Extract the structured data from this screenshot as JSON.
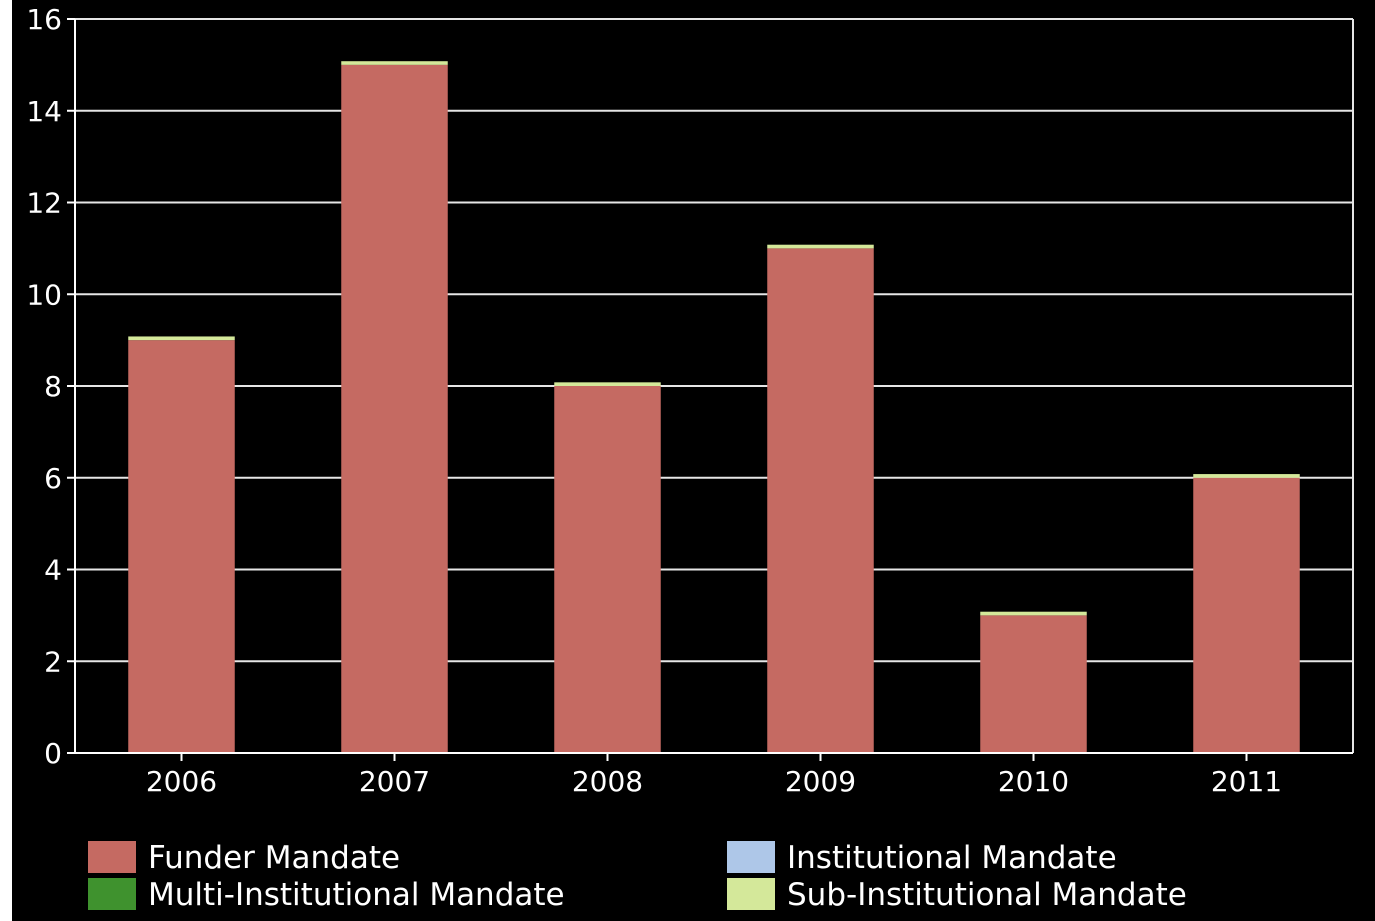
{
  "chart_data": {
    "type": "bar",
    "stacked": true,
    "categories": [
      "2006",
      "2007",
      "2008",
      "2009",
      "2010",
      "2011"
    ],
    "series": [
      {
        "name": "Funder Mandate",
        "color": "#c56a62",
        "values": [
          9,
          15,
          8,
          11,
          3,
          6
        ]
      },
      {
        "name": "Institutional Mandate",
        "color": "#aec7e8",
        "values": [
          0,
          0,
          0,
          0,
          0,
          0
        ]
      },
      {
        "name": "Multi-Institutional Mandate",
        "color": "#3f922e",
        "values": [
          0,
          0,
          0,
          0,
          0,
          0
        ]
      },
      {
        "name": "Sub-Institutional Mandate",
        "color": "#d4e89a",
        "values": [
          0.08,
          0.08,
          0.08,
          0.08,
          0.08,
          0.08
        ]
      }
    ],
    "ylim": [
      0,
      16
    ],
    "yticks": [
      "0",
      "2",
      "4",
      "6",
      "8",
      "10",
      "12",
      "14",
      "16"
    ],
    "grid": true,
    "legend_position": "bottom",
    "background": "#000000",
    "foreground": "#ffffff"
  }
}
